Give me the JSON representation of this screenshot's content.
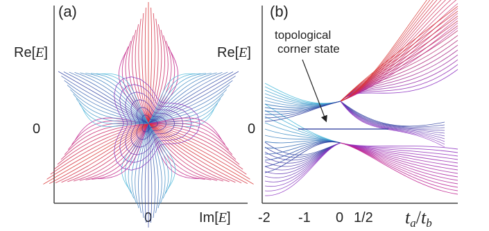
{
  "colors": {
    "red": "#d8302e",
    "magenta": "#c0218f",
    "purple": "#8a2bbf",
    "navy": "#283a9e",
    "cyan": "#3fb6d8",
    "axis": "#444444"
  },
  "chart_data": [
    {
      "panel_label": "(a)",
      "type": "line",
      "ylabel": "Re[E]",
      "xlabel": "Im[E]",
      "y_ticks": [
        "0"
      ],
      "x_ticks": [
        "0"
      ],
      "symmetry": "three-fold",
      "series": [
        {
          "color_group": "arms",
          "values": []
        }
      ]
    },
    {
      "panel_label": "(b)",
      "type": "line",
      "ylabel": "Re[E]",
      "xlabel": "t_a/t_b",
      "y_ticks": [
        "0"
      ],
      "x_ticks": [
        "-2",
        "-1",
        "0",
        "1/2"
      ],
      "annotations": [
        {
          "text_line1": "topological",
          "text_line2": "corner state",
          "points_to_y": 0
        }
      ],
      "series": [
        {
          "color_group": "upper-right fan",
          "values": []
        },
        {
          "color_group": "lower-right fan",
          "values": []
        },
        {
          "color_group": "left fan",
          "values": []
        },
        {
          "color_group": "zero mode",
          "values": [
            0
          ]
        }
      ]
    }
  ]
}
